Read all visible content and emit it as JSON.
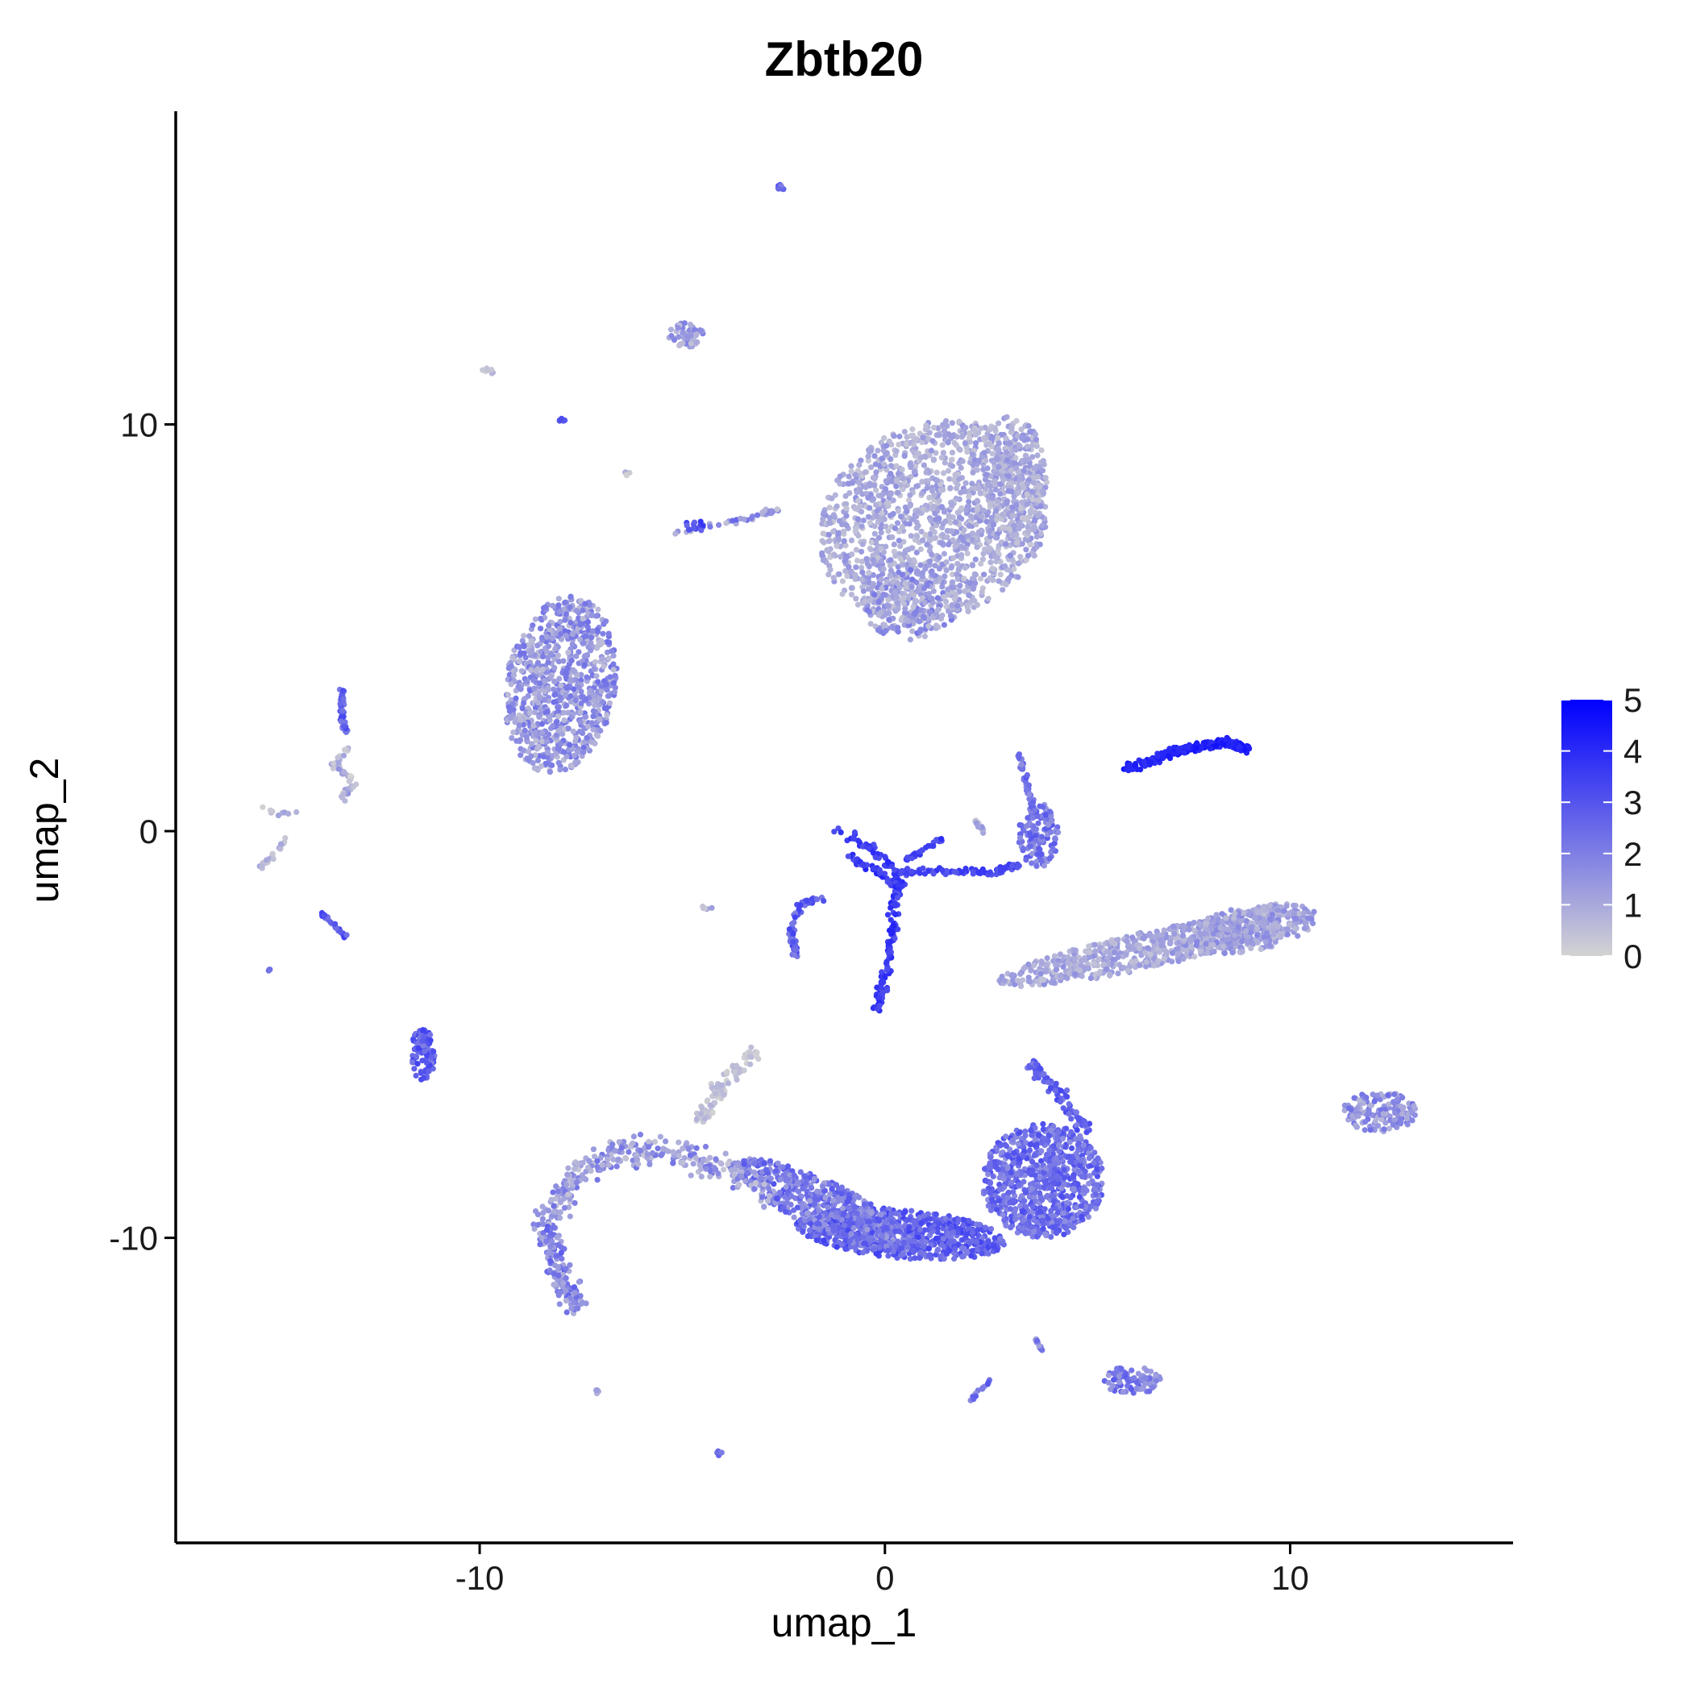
{
  "chart_data": {
    "type": "scatter",
    "title": "Zbtb20",
    "xlabel": "umap_1",
    "ylabel": "umap_2",
    "xlim": [
      -17.5,
      15.5
    ],
    "ylim": [
      -17.5,
      17.7
    ],
    "x_ticks": [
      -10,
      0,
      10
    ],
    "x_tick_labels": [
      "-10",
      "0",
      "10"
    ],
    "y_ticks": [
      -10,
      0,
      10
    ],
    "y_tick_labels": [
      "-10",
      "0",
      "10"
    ],
    "grid": false,
    "legend": {
      "placement": "right",
      "type": "colorbar",
      "min": 0,
      "max": 5,
      "ticks": [
        0,
        1,
        2,
        3,
        4,
        5
      ],
      "tick_labels": [
        "0",
        "1",
        "2",
        "3",
        "4",
        "5"
      ],
      "low_color": "#d3d3d3",
      "high_color": "#0000ff"
    },
    "clusters": [
      {
        "shape": "ellipse",
        "cx": 1.2,
        "cy": 7.6,
        "rx": 2.9,
        "ry": 2.4,
        "angle": 25,
        "n": 1400,
        "expr": [
          0.3,
          1.6
        ]
      },
      {
        "shape": "ellipse",
        "cx": 3.1,
        "cy": 8.6,
        "rx": 0.9,
        "ry": 1.6,
        "angle": 0,
        "n": 300,
        "expr": [
          0.3,
          1.6
        ]
      },
      {
        "shape": "ellipse",
        "cx": 0.6,
        "cy": 5.6,
        "rx": 1.2,
        "ry": 0.9,
        "angle": 0,
        "n": 200,
        "expr": [
          0.4,
          2.2
        ]
      },
      {
        "shape": "ellipse",
        "cx": -8.0,
        "cy": 3.6,
        "rx": 1.35,
        "ry": 2.2,
        "angle": -10,
        "n": 850,
        "expr": [
          0.5,
          2.4
        ]
      },
      {
        "shape": "ellipse",
        "cx": 6.6,
        "cy": -2.9,
        "rx": 3.9,
        "ry": 0.45,
        "angle": 12,
        "n": 650,
        "expr": [
          0.4,
          1.6
        ]
      },
      {
        "shape": "ellipse",
        "cx": 9.0,
        "cy": -2.4,
        "rx": 1.7,
        "ry": 0.55,
        "angle": 10,
        "n": 300,
        "expr": [
          0.5,
          1.8
        ]
      },
      {
        "shape": "ellipse",
        "cx": 3.9,
        "cy": -8.6,
        "rx": 1.5,
        "ry": 1.4,
        "angle": 0,
        "n": 800,
        "expr": [
          1.6,
          3.2
        ]
      },
      {
        "shape": "ellipse",
        "cx": 0.4,
        "cy": -9.9,
        "rx": 2.6,
        "ry": 0.6,
        "angle": -5,
        "n": 700,
        "expr": [
          2.0,
          3.5
        ]
      },
      {
        "shape": "ellipse",
        "cx": -1.5,
        "cy": -9.2,
        "rx": 2.4,
        "ry": 0.6,
        "angle": -25,
        "n": 500,
        "expr": [
          1.2,
          3.0
        ]
      },
      {
        "shape": "ellipse",
        "cx": 12.2,
        "cy": -6.9,
        "rx": 0.9,
        "ry": 0.5,
        "angle": 0,
        "n": 150,
        "expr": [
          0.6,
          2.4
        ]
      },
      {
        "shape": "ellipse",
        "cx": 6.1,
        "cy": -13.5,
        "rx": 0.7,
        "ry": 0.35,
        "angle": 0,
        "n": 90,
        "expr": [
          1.2,
          3.0
        ]
      },
      {
        "shape": "ellipse",
        "cx": -11.4,
        "cy": -5.5,
        "rx": 0.3,
        "ry": 0.65,
        "angle": 0,
        "n": 90,
        "expr": [
          2.0,
          3.5
        ]
      },
      {
        "shape": "ellipse",
        "cx": -4.9,
        "cy": 12.2,
        "rx": 0.45,
        "ry": 0.3,
        "angle": 0,
        "n": 50,
        "expr": [
          0.4,
          2.0
        ]
      },
      {
        "shape": "ellipse",
        "cx": 3.8,
        "cy": -0.1,
        "rx": 0.5,
        "ry": 0.8,
        "angle": 0,
        "n": 120,
        "expr": [
          1.4,
          3.0
        ]
      },
      {
        "shape": "path",
        "points": [
          [
            -8.4,
            -9.6
          ],
          [
            -7.7,
            -8.5
          ],
          [
            -6.6,
            -7.9
          ],
          [
            -5.2,
            -7.9
          ],
          [
            -4.0,
            -8.3
          ],
          [
            -2.8,
            -9.0
          ]
        ],
        "width": 0.5,
        "n": 300,
        "expr": [
          0.3,
          2.3
        ]
      },
      {
        "shape": "path",
        "points": [
          [
            -8.4,
            -9.6
          ],
          [
            -8.1,
            -10.8
          ],
          [
            -7.5,
            -11.8
          ]
        ],
        "width": 0.45,
        "n": 150,
        "expr": [
          0.8,
          2.8
        ]
      },
      {
        "shape": "path",
        "points": [
          [
            -4.6,
            -7.2
          ],
          [
            -4.1,
            -6.4
          ],
          [
            -3.2,
            -5.4
          ]
        ],
        "width": 0.3,
        "n": 100,
        "expr": [
          0.0,
          0.8
        ]
      },
      {
        "shape": "path",
        "points": [
          [
            3.6,
            -5.7
          ],
          [
            4.4,
            -6.6
          ],
          [
            5.0,
            -7.4
          ]
        ],
        "width": 0.25,
        "n": 80,
        "expr": [
          2.0,
          3.4
        ]
      },
      {
        "shape": "path",
        "points": [
          [
            5.9,
            1.5
          ],
          [
            7.3,
            2.0
          ],
          [
            8.4,
            2.2
          ],
          [
            9.0,
            2.0
          ]
        ],
        "width": 0.15,
        "n": 260,
        "expr": [
          3.8,
          4.6
        ]
      },
      {
        "shape": "path",
        "points": [
          [
            -1.3,
            0.0
          ],
          [
            -0.4,
            -0.3
          ],
          [
            0.2,
            -0.9
          ],
          [
            0.4,
            -1.4
          ],
          [
            -0.2,
            -1.0
          ],
          [
            -0.9,
            -0.6
          ]
        ],
        "width": 0.18,
        "n": 120,
        "expr": [
          3.0,
          4.2
        ]
      },
      {
        "shape": "path",
        "points": [
          [
            0.3,
            -1.2
          ],
          [
            0.2,
            -2.5
          ],
          [
            0.0,
            -3.6
          ],
          [
            -0.2,
            -4.4
          ]
        ],
        "width": 0.18,
        "n": 120,
        "expr": [
          3.0,
          4.2
        ]
      },
      {
        "shape": "path",
        "points": [
          [
            0.4,
            -0.8
          ],
          [
            1.2,
            -0.3
          ],
          [
            1.4,
            -0.2
          ]
        ],
        "width": 0.1,
        "n": 25,
        "expr": [
          3.0,
          4.0
        ]
      },
      {
        "shape": "path",
        "points": [
          [
            0.4,
            -1.0
          ],
          [
            1.7,
            -1.0
          ],
          [
            2.8,
            -1.0
          ],
          [
            3.3,
            -0.8
          ]
        ],
        "width": 0.12,
        "n": 90,
        "expr": [
          2.8,
          3.8
        ]
      },
      {
        "shape": "path",
        "points": [
          [
            -1.5,
            -1.7
          ],
          [
            -2.1,
            -1.8
          ],
          [
            -2.3,
            -2.5
          ],
          [
            -2.2,
            -3.1
          ]
        ],
        "width": 0.12,
        "n": 70,
        "expr": [
          2.0,
          3.5
        ]
      },
      {
        "shape": "path",
        "points": [
          [
            3.3,
            2.0
          ],
          [
            3.5,
            1.2
          ],
          [
            3.7,
            0.5
          ]
        ],
        "width": 0.1,
        "n": 40,
        "expr": [
          1.5,
          3.0
        ]
      },
      {
        "shape": "path",
        "points": [
          [
            -13.4,
            3.5
          ],
          [
            -13.4,
            2.8
          ],
          [
            -13.3,
            2.4
          ]
        ],
        "width": 0.1,
        "n": 45,
        "expr": [
          2.0,
          3.4
        ]
      },
      {
        "shape": "path",
        "points": [
          [
            -13.2,
            2.2
          ],
          [
            -13.6,
            1.6
          ],
          [
            -13.1,
            1.2
          ],
          [
            -13.4,
            0.8
          ]
        ],
        "width": 0.15,
        "n": 50,
        "expr": [
          0.0,
          1.6
        ]
      },
      {
        "shape": "path",
        "points": [
          [
            -15.5,
            0.7
          ],
          [
            -15.0,
            0.4
          ],
          [
            -14.4,
            0.5
          ],
          [
            -15.0,
            -0.5
          ],
          [
            -15.4,
            -0.9
          ]
        ],
        "width": 0.08,
        "n": 30,
        "expr": [
          0.0,
          1.2
        ]
      },
      {
        "shape": "path",
        "points": [
          [
            -13.9,
            -2.0
          ],
          [
            -13.3,
            -2.6
          ]
        ],
        "width": 0.07,
        "n": 30,
        "expr": [
          2.2,
          3.5
        ]
      },
      {
        "shape": "path",
        "points": [
          [
            -5.3,
            7.3
          ],
          [
            -4.2,
            7.5
          ],
          [
            -3.0,
            7.8
          ],
          [
            -2.6,
            7.9
          ]
        ],
        "width": 0.12,
        "n": 40,
        "expr": [
          0.4,
          2.6
        ]
      },
      {
        "shape": "path",
        "points": [
          [
            3.7,
            -12.5
          ],
          [
            3.9,
            -12.8
          ]
        ],
        "width": 0.05,
        "n": 12,
        "expr": [
          1.0,
          2.5
        ]
      },
      {
        "shape": "path",
        "points": [
          [
            2.1,
            -14.0
          ],
          [
            2.6,
            -13.5
          ]
        ],
        "width": 0.05,
        "n": 12,
        "expr": [
          1.5,
          3.0
        ]
      },
      {
        "shape": "path",
        "points": [
          [
            2.2,
            0.3
          ],
          [
            2.5,
            -0.1
          ]
        ],
        "width": 0.06,
        "n": 12,
        "expr": [
          0.0,
          1.5
        ]
      },
      {
        "shape": "ellipse",
        "cx": -2.6,
        "cy": 15.8,
        "rx": 0.12,
        "ry": 0.1,
        "angle": 0,
        "n": 10,
        "expr": [
          2.0,
          3.5
        ]
      },
      {
        "shape": "ellipse",
        "cx": -9.8,
        "cy": 11.3,
        "rx": 0.15,
        "ry": 0.08,
        "angle": 0,
        "n": 8,
        "expr": [
          0.0,
          0.8
        ]
      },
      {
        "shape": "ellipse",
        "cx": -8.0,
        "cy": 10.1,
        "rx": 0.1,
        "ry": 0.05,
        "angle": 0,
        "n": 5,
        "expr": [
          2.5,
          3.5
        ]
      },
      {
        "shape": "ellipse",
        "cx": -6.4,
        "cy": 8.8,
        "rx": 0.12,
        "ry": 0.06,
        "angle": 0,
        "n": 6,
        "expr": [
          0.0,
          1.0
        ]
      },
      {
        "shape": "ellipse",
        "cx": -7.1,
        "cy": -13.8,
        "rx": 0.08,
        "ry": 0.06,
        "angle": 0,
        "n": 4,
        "expr": [
          0.5,
          1.5
        ]
      },
      {
        "shape": "ellipse",
        "cx": -4.1,
        "cy": -15.3,
        "rx": 0.08,
        "ry": 0.06,
        "angle": 0,
        "n": 5,
        "expr": [
          2.0,
          3.0
        ]
      },
      {
        "shape": "ellipse",
        "cx": -4.4,
        "cy": -1.9,
        "rx": 0.15,
        "ry": 0.1,
        "angle": 0,
        "n": 6,
        "expr": [
          0.2,
          1.5
        ]
      },
      {
        "shape": "ellipse",
        "cx": -15.2,
        "cy": -3.4,
        "rx": 0.06,
        "ry": 0.05,
        "angle": 0,
        "n": 3,
        "expr": [
          1.5,
          2.5
        ]
      },
      {
        "shape": "ellipse",
        "cx": -4.7,
        "cy": 7.5,
        "rx": 0.25,
        "ry": 0.15,
        "angle": 0,
        "n": 15,
        "expr": [
          2.5,
          3.8
        ]
      }
    ]
  }
}
